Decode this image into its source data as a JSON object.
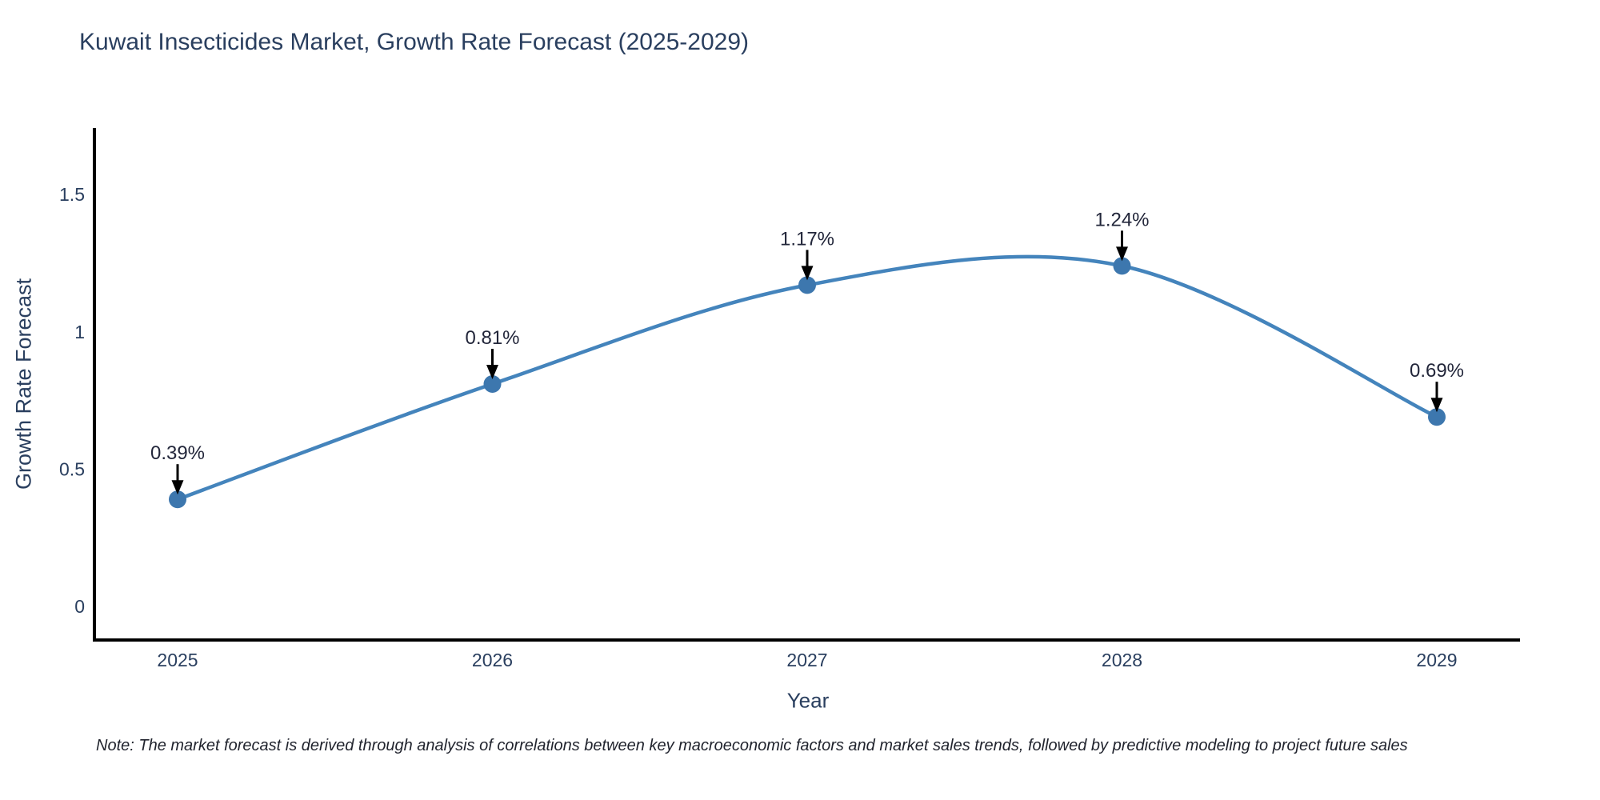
{
  "chart": {
    "title": "Kuwait Insecticides Market, Growth Rate Forecast (2025-2029)",
    "note": "Note: The market forecast is derived through analysis of correlations between key macroeconomic factors and market sales trends, followed by predictive modeling to project future sales",
    "colors": {
      "title_text": "#2a3f5f",
      "tick_text": "#2a3f5f",
      "annotation_text": "#22263a",
      "line": "#4484bc",
      "marker": "#3d77ae",
      "axis": "#000000",
      "background": "#ffffff"
    }
  },
  "chart_data": {
    "type": "line",
    "title": "Kuwait Insecticides Market, Growth Rate Forecast (2025-2029)",
    "xlabel": "Year",
    "ylabel": "Growth Rate Forecast",
    "categories": [
      2025,
      2026,
      2027,
      2028,
      2029
    ],
    "series": [
      {
        "name": "Growth Rate Forecast",
        "values": [
          0.39,
          0.81,
          1.17,
          1.24,
          0.69
        ]
      }
    ],
    "point_labels": [
      "0.39%",
      "0.81%",
      "1.17%",
      "1.24%",
      "0.69%"
    ],
    "yticks": [
      0,
      0.5,
      1,
      1.5
    ],
    "ylim": [
      -0.122,
      1.742
    ],
    "line_shape": "spline",
    "grid": false,
    "legend_position": "none",
    "annotation_style": "down-arrow-to-point"
  }
}
